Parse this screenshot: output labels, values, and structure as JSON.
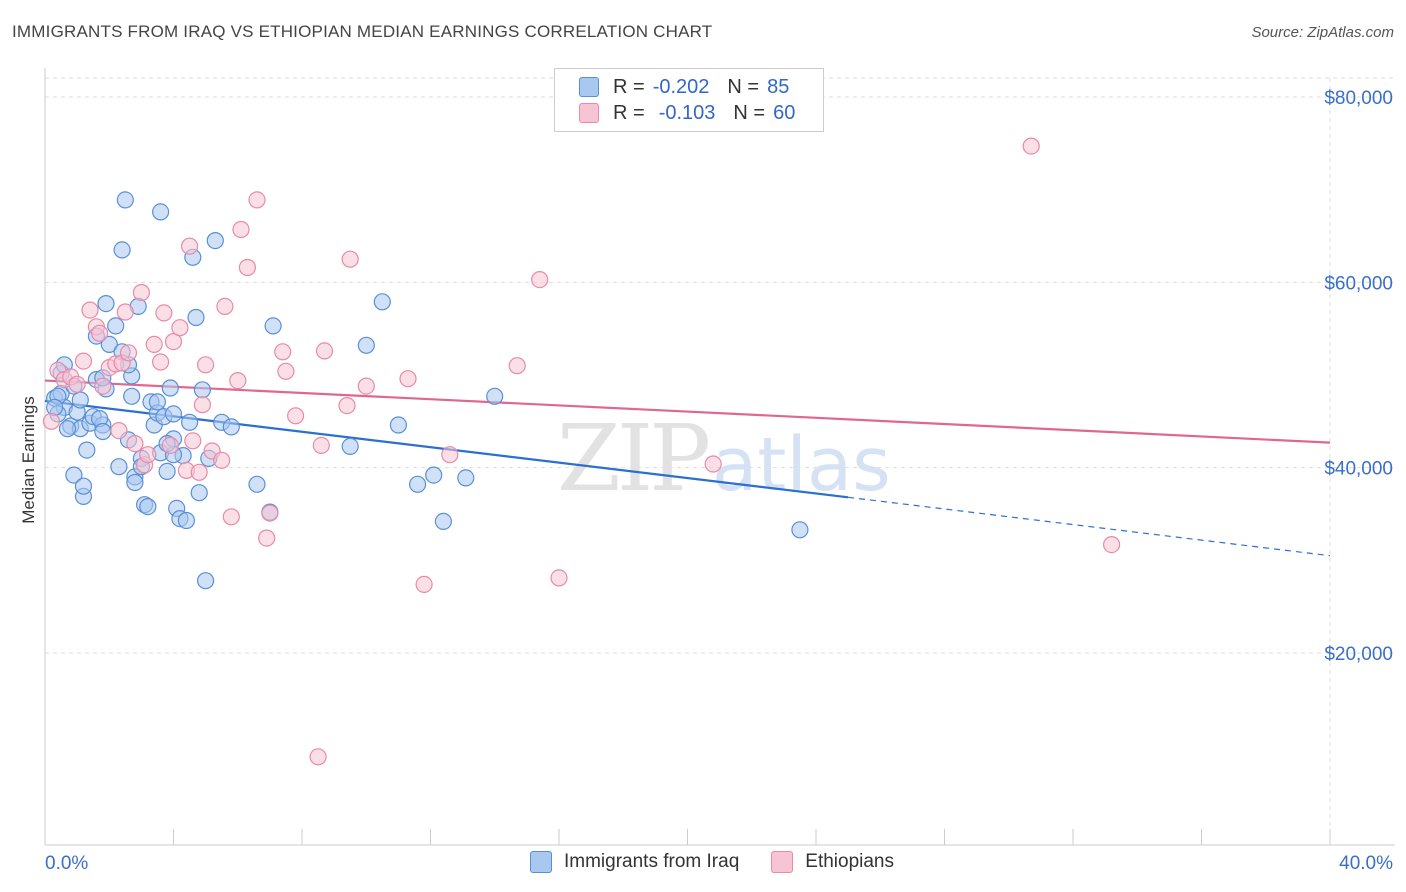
{
  "title": "IMMIGRANTS FROM IRAQ VS ETHIOPIAN MEDIAN EARNINGS CORRELATION CHART",
  "source": "Source: ZipAtlas.com",
  "watermark": {
    "zip": "ZIP",
    "atlas": "atlas"
  },
  "legend": {
    "iraq": {
      "r_label": "R =",
      "r_value": "-0.202",
      "n_label": "N =",
      "n_value": "85"
    },
    "ethiopia": {
      "r_label": "R =",
      "r_value": "-0.103",
      "n_label": "N =",
      "n_value": "60"
    }
  },
  "colors": {
    "iraq_fill": "#a9c8f0",
    "iraq_stroke": "#5a8fd6",
    "iraq_line": "#2a6fd1",
    "eth_fill": "#f7c4d4",
    "eth_stroke": "#e88aa8",
    "eth_line": "#e06890",
    "grid": "#dddddd",
    "tick_label": "#3a6fc9",
    "axis_label": "#333333"
  },
  "chart_data": {
    "type": "scatter",
    "xlabel": "",
    "ylabel": "Median Earnings",
    "x_ticks": [
      "0.0%",
      "40.0%"
    ],
    "y_ticks": [
      "$20,000",
      "$40,000",
      "$60,000",
      "$80,000"
    ],
    "xlim": [
      0,
      40
    ],
    "ylim": [
      0,
      82000
    ],
    "grid": true,
    "legend_position": "top-center",
    "series": [
      {
        "name": "Immigrants from Iraq",
        "trend": {
          "x_start": 0,
          "y_start": 47200,
          "x_end": 25,
          "y_end": 36800,
          "dashed_x_end": 40,
          "dashed_y_end": 30500
        },
        "points": [
          [
            0.3,
            47500
          ],
          [
            0.5,
            48000
          ],
          [
            0.6,
            46500
          ],
          [
            0.4,
            45800
          ],
          [
            0.8,
            44500
          ],
          [
            1.0,
            46000
          ],
          [
            0.5,
            50200
          ],
          [
            1.1,
            44200
          ],
          [
            1.4,
            44800
          ],
          [
            1.5,
            45500
          ],
          [
            1.6,
            49500
          ],
          [
            1.8,
            44600
          ],
          [
            1.9,
            48500
          ],
          [
            2.0,
            53300
          ],
          [
            1.9,
            57700
          ],
          [
            2.2,
            55300
          ],
          [
            2.4,
            63500
          ],
          [
            2.5,
            68900
          ],
          [
            2.6,
            43000
          ],
          [
            2.7,
            49900
          ],
          [
            2.6,
            51100
          ],
          [
            2.7,
            47700
          ],
          [
            2.8,
            39000
          ],
          [
            2.9,
            57400
          ],
          [
            3.0,
            41000
          ],
          [
            3.0,
            40100
          ],
          [
            3.1,
            36000
          ],
          [
            3.2,
            35800
          ],
          [
            3.3,
            47100
          ],
          [
            3.4,
            44600
          ],
          [
            3.5,
            45900
          ],
          [
            3.6,
            67600
          ],
          [
            3.7,
            45500
          ],
          [
            3.6,
            41600
          ],
          [
            3.8,
            39600
          ],
          [
            3.9,
            48600
          ],
          [
            4.0,
            45800
          ],
          [
            4.0,
            43100
          ],
          [
            4.1,
            35600
          ],
          [
            4.2,
            34500
          ],
          [
            4.3,
            41300
          ],
          [
            4.4,
            34300
          ],
          [
            4.5,
            44900
          ],
          [
            4.6,
            62700
          ],
          [
            4.7,
            56200
          ],
          [
            4.8,
            37300
          ],
          [
            4.9,
            48400
          ],
          [
            5.0,
            27800
          ],
          [
            5.1,
            41000
          ],
          [
            5.3,
            64500
          ],
          [
            5.5,
            44900
          ],
          [
            5.8,
            44400
          ],
          [
            6.6,
            38200
          ],
          [
            7.0,
            35200
          ],
          [
            7.1,
            55300
          ],
          [
            9.5,
            42300
          ],
          [
            10.0,
            53200
          ],
          [
            10.5,
            57900
          ],
          [
            11.0,
            44600
          ],
          [
            11.6,
            38200
          ],
          [
            12.1,
            39200
          ],
          [
            12.4,
            34200
          ],
          [
            13.1,
            38900
          ],
          [
            14.0,
            47700
          ],
          [
            23.5,
            33300
          ],
          [
            0.9,
            39200
          ],
          [
            1.3,
            41900
          ],
          [
            1.2,
            36900
          ],
          [
            1.6,
            54200
          ],
          [
            1.2,
            38000
          ],
          [
            0.7,
            44200
          ],
          [
            0.9,
            48800
          ],
          [
            1.7,
            45300
          ],
          [
            1.8,
            43900
          ],
          [
            2.4,
            52500
          ],
          [
            0.4,
            47700
          ],
          [
            3.5,
            47100
          ],
          [
            4.0,
            41400
          ],
          [
            2.8,
            38400
          ],
          [
            1.1,
            47300
          ],
          [
            0.3,
            46500
          ],
          [
            0.6,
            51100
          ],
          [
            1.8,
            49700
          ],
          [
            2.3,
            40100
          ],
          [
            3.8,
            42600
          ]
        ]
      },
      {
        "name": "Ethiopians",
        "trend": {
          "x_start": 0,
          "y_start": 49400,
          "x_end": 40,
          "y_end": 42700
        },
        "points": [
          [
            0.2,
            45000
          ],
          [
            0.4,
            50500
          ],
          [
            0.6,
            49500
          ],
          [
            0.8,
            49800
          ],
          [
            1.0,
            49000
          ],
          [
            1.2,
            51500
          ],
          [
            1.4,
            57000
          ],
          [
            1.6,
            55200
          ],
          [
            1.7,
            54500
          ],
          [
            1.8,
            48800
          ],
          [
            2.0,
            50800
          ],
          [
            2.2,
            51200
          ],
          [
            2.3,
            44000
          ],
          [
            2.4,
            51300
          ],
          [
            2.5,
            56800
          ],
          [
            2.6,
            52400
          ],
          [
            2.8,
            42600
          ],
          [
            3.0,
            58900
          ],
          [
            3.1,
            40300
          ],
          [
            3.2,
            41400
          ],
          [
            3.4,
            53300
          ],
          [
            3.6,
            51400
          ],
          [
            3.7,
            56700
          ],
          [
            3.9,
            42400
          ],
          [
            4.0,
            53600
          ],
          [
            4.2,
            55100
          ],
          [
            4.4,
            39700
          ],
          [
            4.5,
            63900
          ],
          [
            4.6,
            42900
          ],
          [
            4.8,
            39500
          ],
          [
            4.9,
            46800
          ],
          [
            5.0,
            51100
          ],
          [
            5.2,
            41800
          ],
          [
            5.5,
            40800
          ],
          [
            5.6,
            57400
          ],
          [
            5.8,
            34700
          ],
          [
            6.0,
            49400
          ],
          [
            6.1,
            65700
          ],
          [
            6.3,
            61600
          ],
          [
            6.6,
            68900
          ],
          [
            6.9,
            32400
          ],
          [
            7.0,
            35100
          ],
          [
            7.4,
            52500
          ],
          [
            7.5,
            50400
          ],
          [
            7.8,
            45600
          ],
          [
            8.6,
            42400
          ],
          [
            8.7,
            52600
          ],
          [
            9.4,
            46700
          ],
          [
            9.5,
            62500
          ],
          [
            10.0,
            48800
          ],
          [
            11.3,
            49600
          ],
          [
            11.8,
            27400
          ],
          [
            12.6,
            41400
          ],
          [
            14.7,
            51000
          ],
          [
            15.4,
            60300
          ],
          [
            16.0,
            28100
          ],
          [
            20.8,
            40400
          ],
          [
            30.7,
            74700
          ],
          [
            33.2,
            31700
          ],
          [
            8.5,
            8800
          ]
        ]
      }
    ]
  }
}
